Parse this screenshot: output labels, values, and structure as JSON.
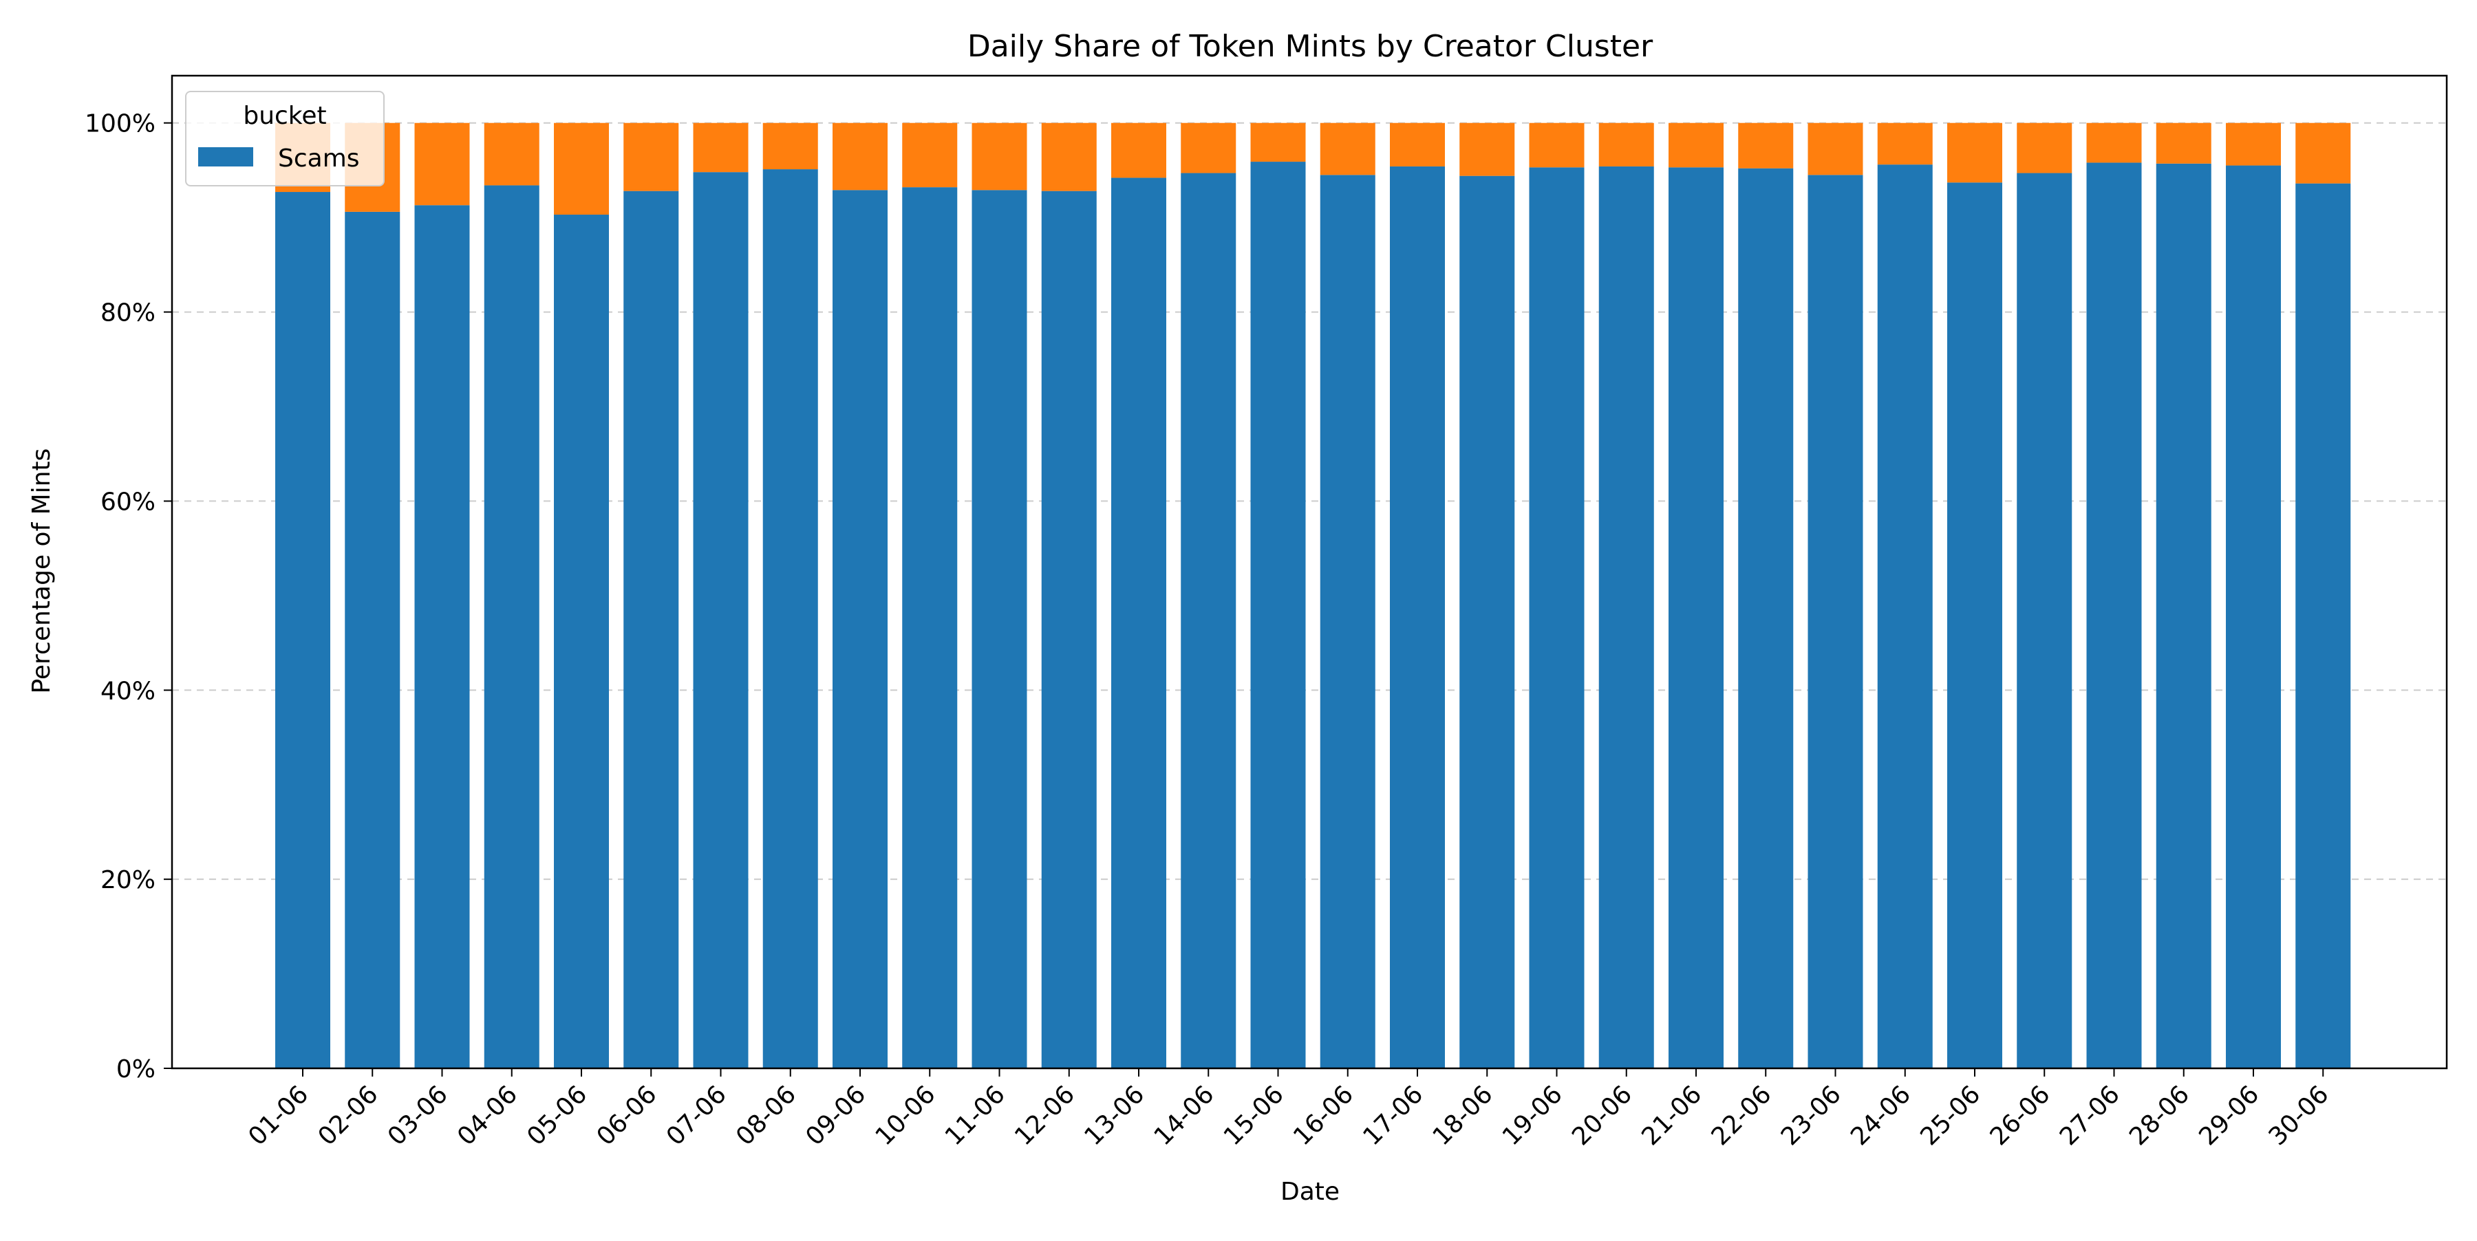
{
  "chart_data": {
    "type": "bar",
    "stacked": true,
    "title": "Daily Share of Token Mints by Creator Cluster",
    "xlabel": "Date",
    "ylabel": "Percentage of Mints",
    "ylim": [
      0,
      1.05
    ],
    "yticks": [
      0,
      0.2,
      0.4,
      0.6,
      0.8,
      1.0
    ],
    "ytick_labels": [
      "0%",
      "20%",
      "40%",
      "60%",
      "80%",
      "100%"
    ],
    "grid": "y-dashed",
    "legend": {
      "title": "bucket",
      "placement": "top-left"
    },
    "categories": [
      "01-06",
      "02-06",
      "03-06",
      "04-06",
      "05-06",
      "06-06",
      "07-06",
      "08-06",
      "09-06",
      "10-06",
      "11-06",
      "12-06",
      "13-06",
      "14-06",
      "15-06",
      "16-06",
      "17-06",
      "18-06",
      "19-06",
      "20-06",
      "21-06",
      "22-06",
      "23-06",
      "24-06",
      "25-06",
      "26-06",
      "27-06",
      "28-06",
      "29-06",
      "30-06"
    ],
    "series": [
      {
        "name": "Scams",
        "color": "#1f77b4",
        "values": [
          0.927,
          0.906,
          0.913,
          0.934,
          0.903,
          0.928,
          0.948,
          0.951,
          0.929,
          0.932,
          0.929,
          0.928,
          0.942,
          0.947,
          0.959,
          0.945,
          0.954,
          0.944,
          0.953,
          0.954,
          0.953,
          0.952,
          0.945,
          0.956,
          0.937,
          0.947,
          0.958,
          0.957,
          0.955,
          0.936
        ]
      },
      {
        "color": "#ff7f0e",
        "values": [
          0.073,
          0.094,
          0.087,
          0.066,
          0.097,
          0.072,
          0.052,
          0.049,
          0.071,
          0.068,
          0.071,
          0.072,
          0.058,
          0.053,
          0.041,
          0.055,
          0.046,
          0.056,
          0.047,
          0.046,
          0.047,
          0.048,
          0.055,
          0.044,
          0.063,
          0.053,
          0.042,
          0.043,
          0.045,
          0.064
        ]
      }
    ]
  }
}
